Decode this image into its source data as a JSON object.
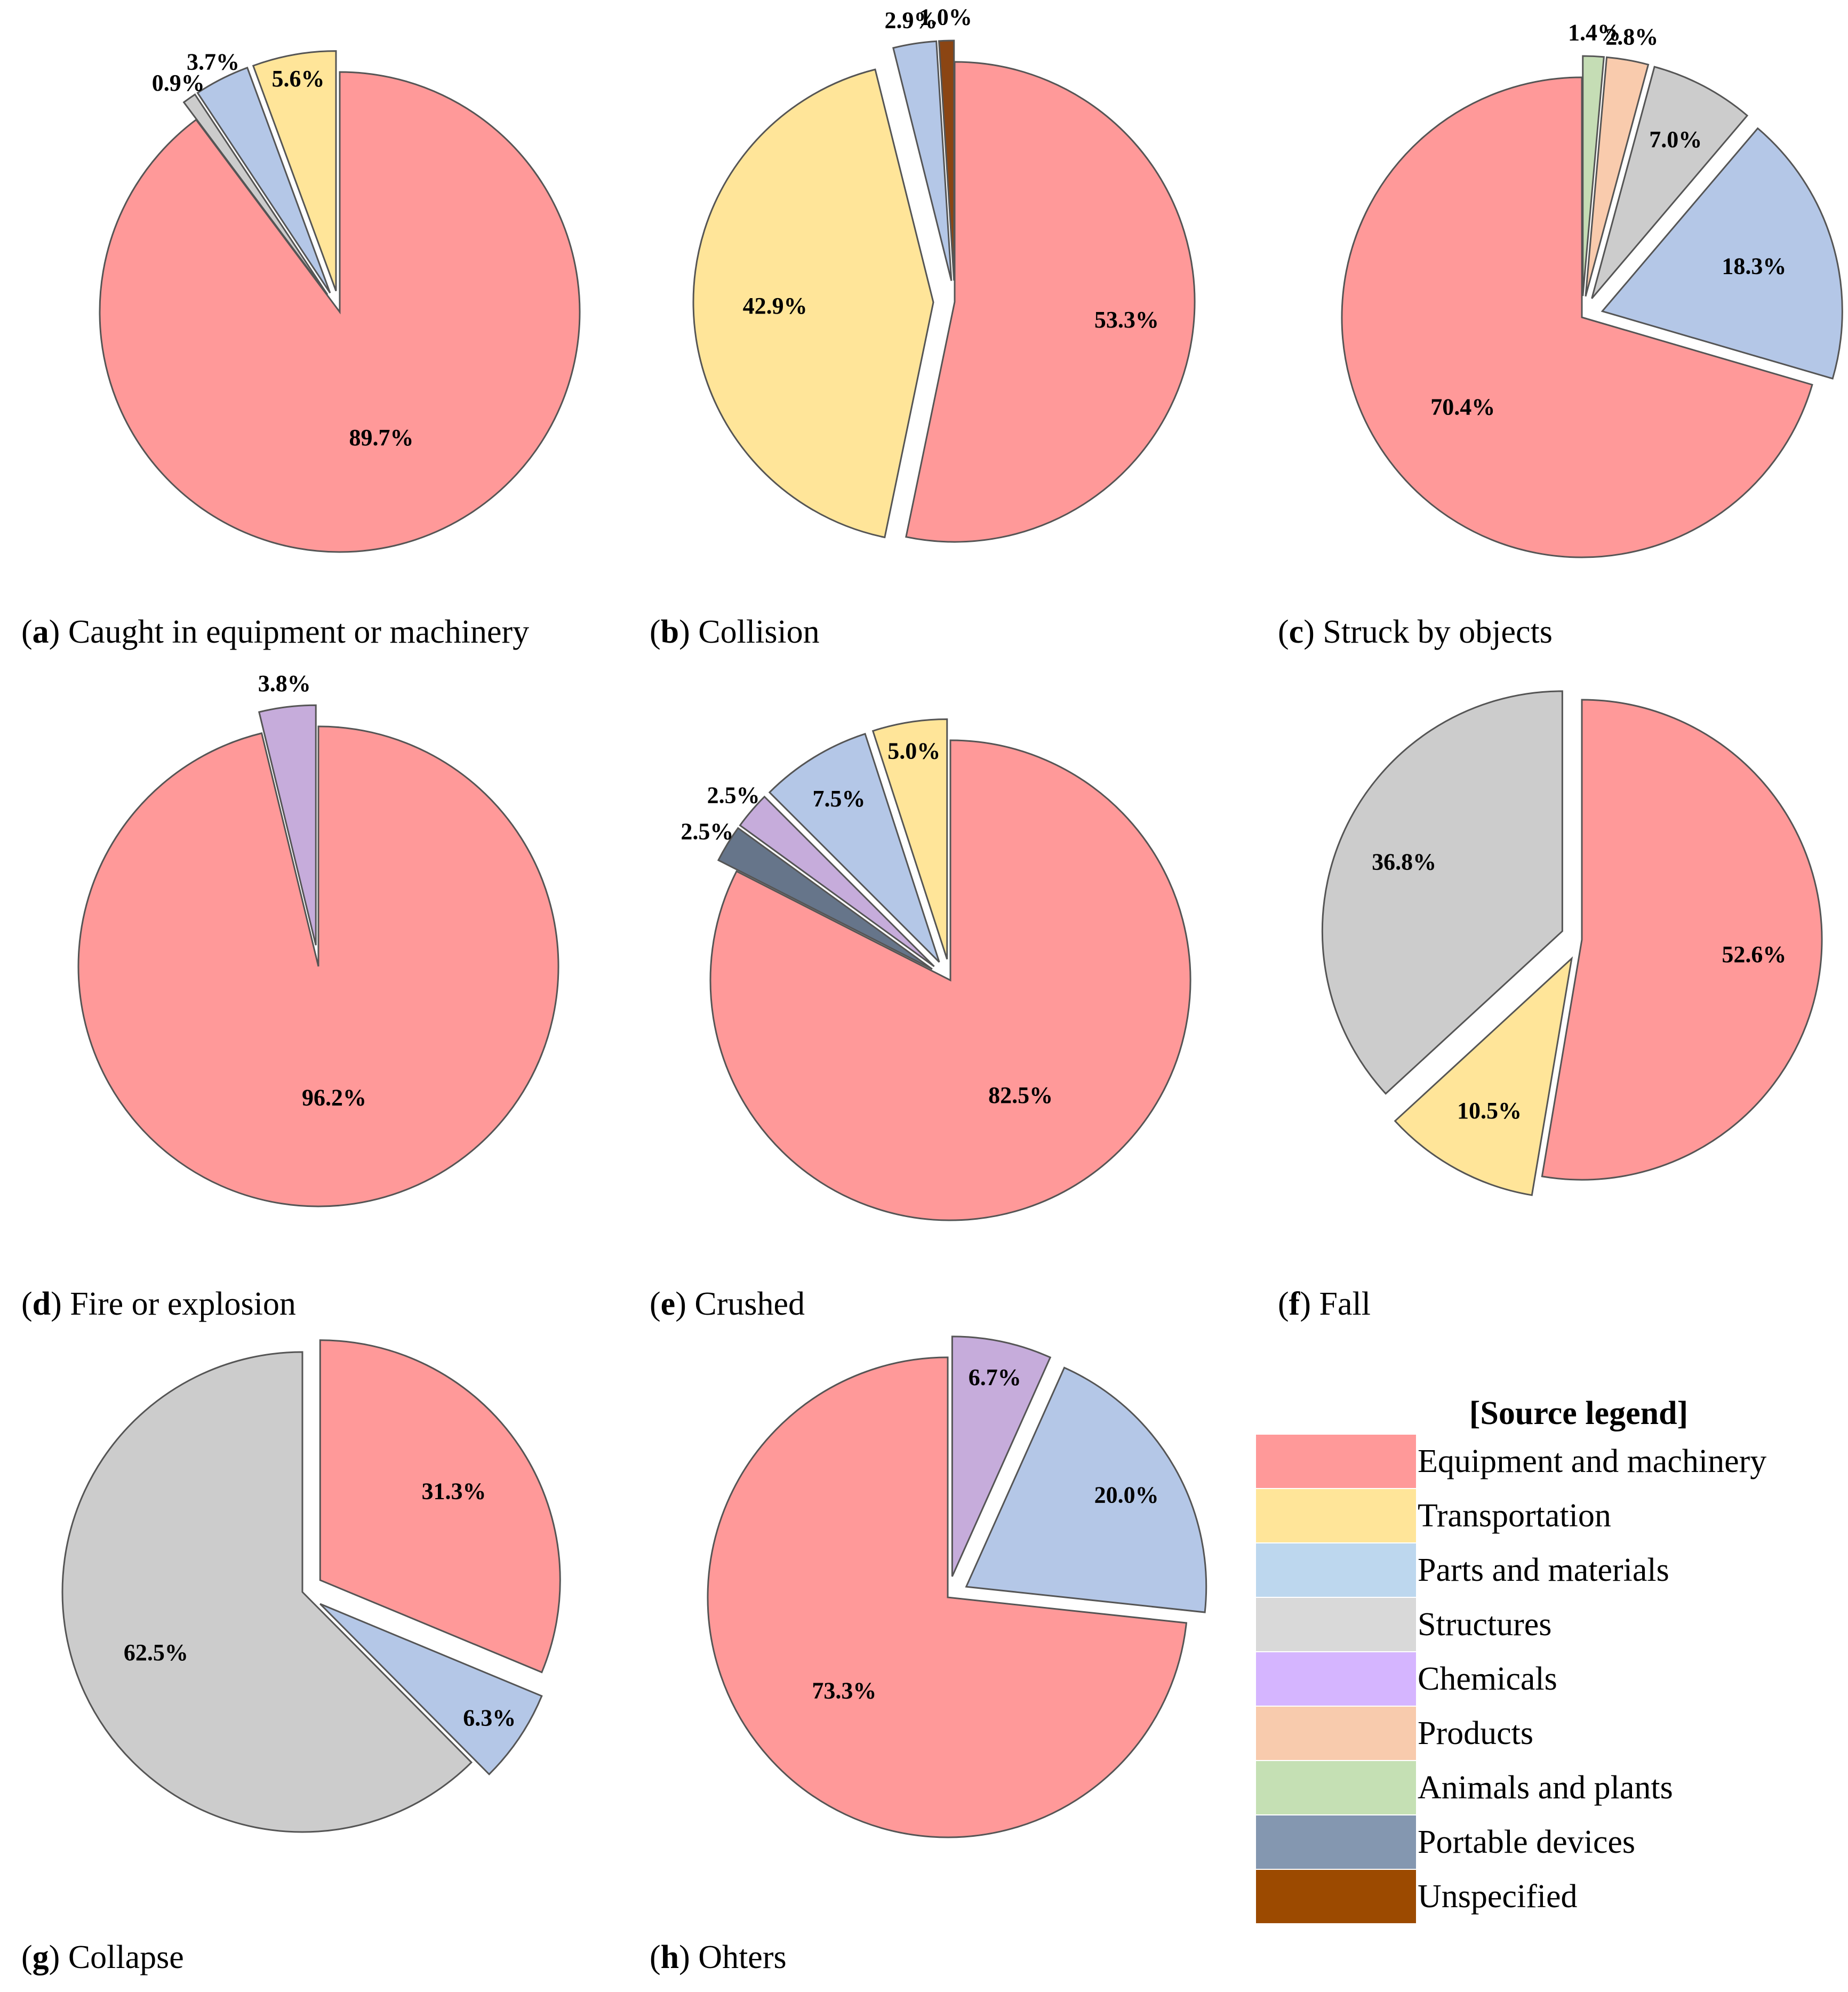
{
  "colors": {
    "Equipment and machinery": "#FF9999",
    "Transportation": "#FFE599",
    "Parts and materials": "#B4C7E7",
    "Structures": "#CCCCCC",
    "Chemicals": "#C6ACDB",
    "Products": "#F9CBAD",
    "Animals and plants": "#C5DDB5",
    "Portable devices": "#66758A",
    "Unspecified": "#8B4513"
  },
  "legend": {
    "title": "[Source legend]",
    "items": [
      {
        "label": "Equipment and machinery",
        "color": "#FF9999"
      },
      {
        "label": "Transportation",
        "color": "#FFE599"
      },
      {
        "label": "Parts and materials",
        "color": "#BDD7EE"
      },
      {
        "label": "Structures",
        "color": "#D9D9D9"
      },
      {
        "label": "Chemicals",
        "color": "#D5B5FF"
      },
      {
        "label": "Products",
        "color": "#F8CBAD"
      },
      {
        "label": "Animals and plants",
        "color": "#C5E0B4"
      },
      {
        "label": "Portable devices",
        "color": "#8497B0"
      },
      {
        "label": "Unspecified",
        "color": "#9C4A00"
      }
    ]
  },
  "chart_data": [
    {
      "type": "pie",
      "letter": "a",
      "title": "Caught in equipment or machinery",
      "slices": [
        {
          "label": "Equipment and machinery",
          "value": 89.7,
          "text": "89.7%"
        },
        {
          "label": "Transportation",
          "value": 5.6,
          "text": "5.6%"
        },
        {
          "label": "Parts and materials",
          "value": 3.7,
          "text": "3.7%"
        },
        {
          "label": "Structures",
          "value": 0.9,
          "text": "0.9%"
        }
      ]
    },
    {
      "type": "pie",
      "letter": "b",
      "title": "Collision",
      "slices": [
        {
          "label": "Equipment and machinery",
          "value": 53.3,
          "text": "53.3%"
        },
        {
          "label": "Transportation",
          "value": 42.9,
          "text": "42.9%"
        },
        {
          "label": "Parts and materials",
          "value": 2.9,
          "text": "2.9%"
        },
        {
          "label": "Unspecified",
          "value": 1.0,
          "text": "1.0%"
        }
      ]
    },
    {
      "type": "pie",
      "letter": "c",
      "title": "Struck by objects",
      "slices": [
        {
          "label": "Equipment and machinery",
          "value": 70.4,
          "text": "70.4%"
        },
        {
          "label": "Parts and materials",
          "value": 18.3,
          "text": "18.3%"
        },
        {
          "label": "Structures",
          "value": 7.0,
          "text": "7.0%"
        },
        {
          "label": "Products",
          "value": 2.8,
          "text": "2.8%"
        },
        {
          "label": "Animals and plants",
          "value": 1.4,
          "text": "1.4%"
        }
      ]
    },
    {
      "type": "pie",
      "letter": "d",
      "title": "Fire or explosion",
      "slices": [
        {
          "label": "Equipment and machinery",
          "value": 96.2,
          "text": "96.2%"
        },
        {
          "label": "Chemicals",
          "value": 3.8,
          "text": "3.8%"
        }
      ]
    },
    {
      "type": "pie",
      "letter": "e",
      "title": "Crushed",
      "slices": [
        {
          "label": "Equipment and machinery",
          "value": 82.5,
          "text": "82.5%"
        },
        {
          "label": "Transportation",
          "value": 5.0,
          "text": "5.0%"
        },
        {
          "label": "Parts and materials",
          "value": 7.5,
          "text": "7.5%"
        },
        {
          "label": "Chemicals",
          "value": 2.5,
          "text": "2.5%"
        },
        {
          "label": "Portable devices",
          "value": 2.5,
          "text": "2.5%"
        }
      ]
    },
    {
      "type": "pie",
      "letter": "f",
      "title": "Fall",
      "slices": [
        {
          "label": "Equipment and machinery",
          "value": 52.6,
          "text": "52.6%"
        },
        {
          "label": "Transportation",
          "value": 10.5,
          "text": "10.5%"
        },
        {
          "label": "Structures",
          "value": 36.8,
          "text": "36.8%"
        }
      ]
    },
    {
      "type": "pie",
      "letter": "g",
      "title": "Collapse",
      "slices": [
        {
          "label": "Equipment and machinery",
          "value": 31.3,
          "text": "31.3%"
        },
        {
          "label": "Parts and materials",
          "value": 6.3,
          "text": "6.3%"
        },
        {
          "label": "Structures",
          "value": 62.5,
          "text": "62.5%"
        }
      ]
    },
    {
      "type": "pie",
      "letter": "h",
      "title": "Ohters",
      "slices": [
        {
          "label": "Equipment and machinery",
          "value": 73.3,
          "text": "73.3%"
        },
        {
          "label": "Parts and materials",
          "value": 20.0,
          "text": "20.0%"
        },
        {
          "label": "Chemicals",
          "value": 6.7,
          "text": "6.7%"
        }
      ]
    }
  ]
}
